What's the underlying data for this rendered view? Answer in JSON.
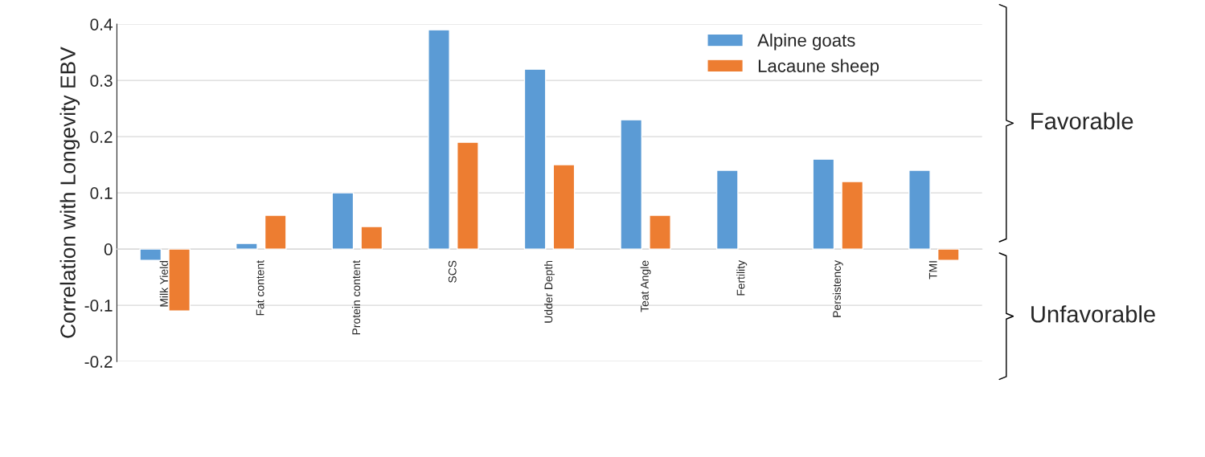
{
  "chart_data": {
    "type": "bar",
    "ylabel": "Correlation with Longevity EBV",
    "categories": [
      "Milk Yield",
      "Fat content",
      "Protein content",
      "SCS",
      "Udder Depth",
      "Teat Angle",
      "Fertility",
      "Persistency",
      "TMI"
    ],
    "series": [
      {
        "name": "Alpine goats",
        "color": "#5b9bd5",
        "values": [
          -0.02,
          0.01,
          0.1,
          0.39,
          0.32,
          0.23,
          0.14,
          0.16,
          0.14
        ]
      },
      {
        "name": "Lacaune sheep",
        "color": "#ed7d31",
        "values": [
          -0.11,
          0.06,
          0.04,
          0.19,
          0.15,
          0.06,
          null,
          0.12,
          -0.02
        ]
      }
    ],
    "ylim": [
      -0.2,
      0.4
    ],
    "yticks": [
      {
        "value": -0.2,
        "label": "-0.2"
      },
      {
        "value": -0.1,
        "label": "-0.1"
      },
      0,
      0.1,
      0.2,
      0.3,
      0.4
    ],
    "grid": "y",
    "legend": "top right",
    "annotations": [
      "Favorable",
      "Unfavorable"
    ]
  }
}
